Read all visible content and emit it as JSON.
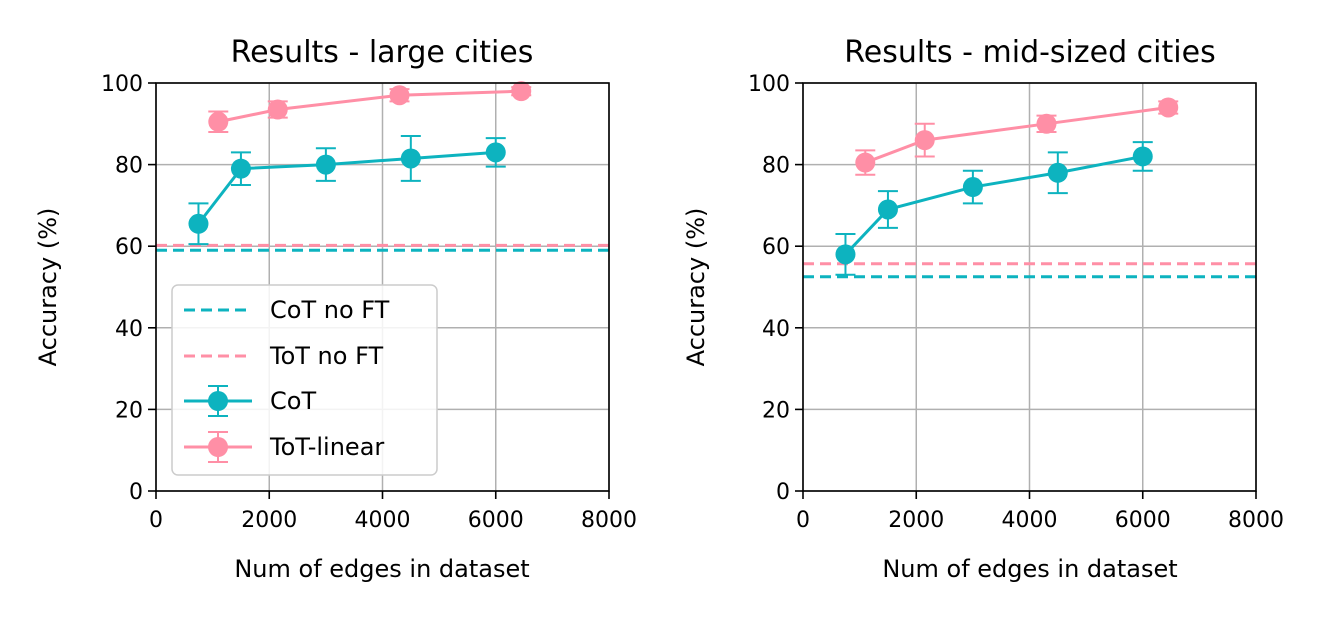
{
  "colors": {
    "cot": "#0db3bf",
    "tot": "#ff8fa6",
    "grid": "#b0b0b0",
    "axis": "#000000"
  },
  "chart_data": [
    {
      "type": "line",
      "title": "Results - large cities",
      "xlabel": "Num of edges in dataset",
      "ylabel": "Accuracy (%)",
      "xlim": [
        0,
        8000
      ],
      "ylim": [
        0,
        100
      ],
      "xticks": [
        0,
        2000,
        4000,
        6000,
        8000
      ],
      "yticks": [
        0,
        20,
        40,
        60,
        80,
        100
      ],
      "xtick_labels": [
        "0",
        "2000",
        "4000",
        "6000",
        "8000"
      ],
      "ytick_labels": [
        "0",
        "20",
        "40",
        "60",
        "80",
        "100"
      ],
      "grid": true,
      "legend": {
        "placement": "lower-left",
        "entries": [
          "CoT no FT",
          "ToT no FT",
          "CoT",
          "ToT-linear"
        ]
      },
      "series": [
        {
          "name": "CoT",
          "style": "line-markers-errorbars",
          "color_key": "cot",
          "x": [
            750,
            1500,
            3000,
            4500,
            6000
          ],
          "y": [
            65.5,
            79,
            80,
            81.5,
            83
          ],
          "err": [
            5,
            4,
            4,
            5.5,
            3.5
          ]
        },
        {
          "name": "ToT-linear",
          "style": "line-markers-errorbars",
          "color_key": "tot",
          "x": [
            1100,
            2150,
            4300,
            6450
          ],
          "y": [
            90.5,
            93.5,
            97,
            98
          ],
          "err": [
            2.5,
            2,
            1.5,
            1
          ]
        },
        {
          "name": "CoT no FT",
          "style": "hline-dashed",
          "color_key": "cot",
          "y": 59
        },
        {
          "name": "ToT no FT",
          "style": "hline-dashed",
          "color_key": "tot",
          "y": 60.2
        }
      ]
    },
    {
      "type": "line",
      "title": "Results - mid-sized cities",
      "xlabel": "Num of edges in dataset",
      "ylabel": "Accuracy (%)",
      "xlim": [
        0,
        8000
      ],
      "ylim": [
        0,
        100
      ],
      "xticks": [
        0,
        2000,
        4000,
        6000,
        8000
      ],
      "yticks": [
        0,
        20,
        40,
        60,
        80,
        100
      ],
      "xtick_labels": [
        "0",
        "2000",
        "4000",
        "6000",
        "8000"
      ],
      "ytick_labels": [
        "0",
        "20",
        "40",
        "60",
        "80",
        "100"
      ],
      "grid": true,
      "series": [
        {
          "name": "CoT",
          "style": "line-markers-errorbars",
          "color_key": "cot",
          "x": [
            750,
            1500,
            3000,
            4500,
            6000
          ],
          "y": [
            58,
            69,
            74.5,
            78,
            82
          ],
          "err": [
            5,
            4.5,
            4,
            5,
            3.5
          ]
        },
        {
          "name": "ToT-linear",
          "style": "line-markers-errorbars",
          "color_key": "tot",
          "x": [
            1100,
            2150,
            4300,
            6450
          ],
          "y": [
            80.5,
            86,
            90,
            94
          ],
          "err": [
            3,
            4,
            2,
            1.5
          ]
        },
        {
          "name": "CoT no FT",
          "style": "hline-dashed",
          "color_key": "cot",
          "y": 52.5
        },
        {
          "name": "ToT no FT",
          "style": "hline-dashed",
          "color_key": "tot",
          "y": 55.7
        }
      ]
    }
  ]
}
